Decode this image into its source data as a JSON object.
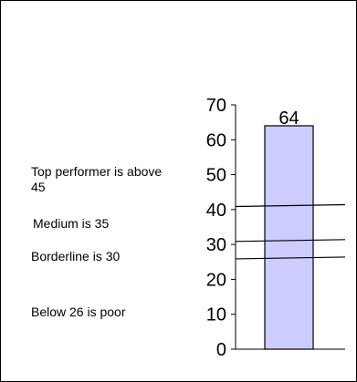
{
  "chart_data": {
    "type": "bar",
    "title": "",
    "xlabel": "",
    "ylabel": "",
    "categories": [
      ""
    ],
    "values": [
      64
    ],
    "data_labels": [
      "64"
    ],
    "ylim": [
      0,
      70
    ],
    "y_ticks": [
      0,
      10,
      20,
      30,
      40,
      50,
      60,
      70
    ],
    "grid": false,
    "legend": "none",
    "bar_color": "#ccccff",
    "bar_edge_color": "#000000",
    "reference_lines": [
      {
        "value": 41
      },
      {
        "value": 31
      },
      {
        "value": 26
      }
    ],
    "annotations": [
      {
        "text": "Top performer is above 45"
      },
      {
        "text": "Medium is 35"
      },
      {
        "text": "Borderline is 30"
      },
      {
        "text": "Below 26 is poor"
      }
    ]
  }
}
